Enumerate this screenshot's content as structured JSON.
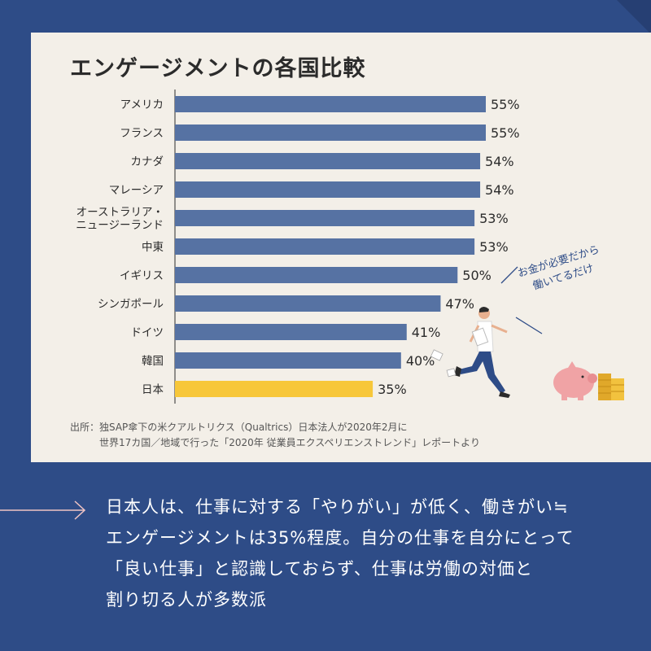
{
  "title": "エンゲージメントの各国比較",
  "chart_data": {
    "type": "bar",
    "orientation": "horizontal",
    "categories": [
      "アメリカ",
      "フランス",
      "カナダ",
      "マレーシア",
      "オーストラリア・ニュージーランド",
      "中東",
      "イギリス",
      "シンガポール",
      "ドイツ",
      "韓国",
      "日本"
    ],
    "category_lines": [
      [
        "アメリカ"
      ],
      [
        "フランス"
      ],
      [
        "カナダ"
      ],
      [
        "マレーシア"
      ],
      [
        "オーストラリア・",
        "ニュージーランド"
      ],
      [
        "中東"
      ],
      [
        "イギリス"
      ],
      [
        "シンガポール"
      ],
      [
        "ドイツ"
      ],
      [
        "韓国"
      ],
      [
        "日本"
      ]
    ],
    "values": [
      55,
      55,
      54,
      54,
      53,
      53,
      50,
      47,
      41,
      40,
      35
    ],
    "value_labels": [
      "55%",
      "55%",
      "54%",
      "54%",
      "53%",
      "53%",
      "50%",
      "47%",
      "41%",
      "40%",
      "35%"
    ],
    "highlight": "日本",
    "xlim": [
      0,
      55
    ],
    "bar_color": "#5672a3",
    "highlight_color": "#f7c73a"
  },
  "source": {
    "prefix": "出所：",
    "line1": "独SAP傘下の米クアルトリクス（Qualtrics）日本法人が2020年2月に",
    "line2": "世界17カ国／地域で行った「2020年 従業員エクスペリエンストレンド」レポートより"
  },
  "bubble": {
    "line1": "お金が必要だから",
    "line2": "働いてるだけ"
  },
  "summary": {
    "line1": "日本人は、仕事に対する「やりがい」が低く、働きがい≒",
    "line2": "エンゲージメントは35%程度。自分の仕事を自分にとって",
    "line3": "「良い仕事」と認識しておらず、仕事は労働の対価と",
    "line4": "割り切る人が多数派"
  },
  "colors": {
    "background": "#2e4c87",
    "card": "#f3efe8",
    "text": "#2b2b2b"
  }
}
